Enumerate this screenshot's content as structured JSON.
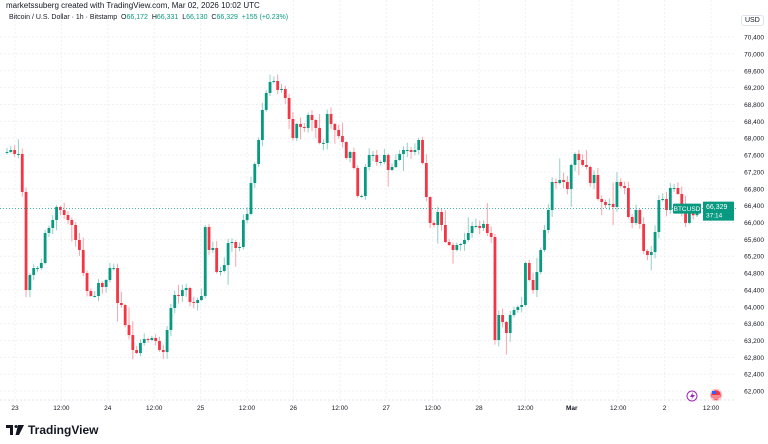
{
  "header": {
    "attribution": "marketssuberg created with TradingView.com, Mar 02, 2026 10:02 UTC"
  },
  "legend": {
    "symbol_desc": "Bitcoin / U.S. Dollar · 1h · Bitstamp",
    "o_label": "O",
    "o": "66,172",
    "h_label": "H",
    "h": "66,331",
    "l_label": "L",
    "l": "66,130",
    "c_label": "C",
    "c": "66,329",
    "change": "+155 (+0.23%)"
  },
  "currency": "USD",
  "price_tag": {
    "symbol": "BTCUSD",
    "price": "66,329",
    "countdown": "37:14"
  },
  "brand": {
    "name": "TradingView"
  },
  "colors": {
    "up": "#089981",
    "down": "#f23645",
    "grid": "#eef0f3",
    "text": "#131722",
    "event_lightning": "#9c27b0",
    "event_flag": "#f23645"
  },
  "events": [
    {
      "icon": "lightning-event-icon"
    },
    {
      "icon": "us-flag-event-icon"
    }
  ],
  "chart_data": {
    "type": "candlestick",
    "interval": "1h",
    "ylim": [
      61800,
      70600
    ],
    "grid": true,
    "y_ticks": [
      "70,400",
      "70,000",
      "69,600",
      "69,200",
      "68,800",
      "68,400",
      "68,000",
      "67,600",
      "67,200",
      "66,800",
      "66,400",
      "66,000",
      "65,600",
      "65,200",
      "64,800",
      "64,400",
      "64,000",
      "63,600",
      "63,200",
      "62,800",
      "62,400",
      "62,000"
    ],
    "x_ticks": [
      "23",
      "12:00",
      "24",
      "12:00",
      "25",
      "12:00",
      "26",
      "12:00",
      "27",
      "12:00",
      "28",
      "12:00",
      "Mar",
      "12:00",
      "2",
      "12:00"
    ],
    "first_open": 67650,
    "closes": [
      67673,
      67720,
      67626,
      67626,
      66724,
      64398,
      64754,
      64920,
      64920,
      65039,
      65751,
      65870,
      66059,
      66368,
      66297,
      66178,
      66059,
      65941,
      65585,
      65348,
      64802,
      64375,
      64256,
      64256,
      64565,
      64470,
      64636,
      64920,
      64920,
      64090,
      64042,
      63568,
      63330,
      62975,
      62903,
      63141,
      63236,
      63212,
      63260,
      63188,
      62975,
      62927,
      63449,
      63971,
      64280,
      64256,
      64398,
      64446,
      64114,
      64090,
      64161,
      64256,
      65893,
      65348,
      65395,
      64825,
      64849,
      64991,
      65514,
      65537,
      65395,
      65419,
      66059,
      66202,
      66936,
      67388,
      67958,
      68670,
      69073,
      69334,
      69358,
      69144,
      69168,
      68954,
      68456,
      68005,
      68338,
      68266,
      68243,
      68551,
      68432,
      68243,
      67887,
      67887,
      68575,
      68338,
      68195,
      68053,
      67910,
      67531,
      67673,
      67293,
      66629,
      66629,
      67317,
      67602,
      67602,
      67436,
      67436,
      67602,
      67246,
      67317,
      67483,
      67626,
      67720,
      67720,
      67673,
      67720,
      67958,
      67412,
      66605,
      65988,
      65941,
      66249,
      65941,
      65537,
      65466,
      65348,
      65466,
      65490,
      65585,
      65751,
      65917,
      65917,
      65870,
      65965,
      65751,
      65656,
      63212,
      63805,
      63639,
      63378,
      63805,
      63924,
      63995,
      64042,
      65039,
      64636,
      64398,
      64825,
      65348,
      65822,
      66297,
      66961,
      66936,
      67009,
      66961,
      66795,
      67365,
      67626,
      67483,
      67365,
      67317,
      66936,
      67127,
      66558,
      66487,
      66417,
      66440,
      66368,
      66961,
      66866,
      66819,
      66131,
      65988,
      66297,
      65965,
      65324,
      65229,
      65300,
      65775,
      66534,
      66558,
      66297,
      66819,
      66819,
      66677,
      66226,
      65988,
      66249,
      66172,
      66329
    ],
    "last_candle": {
      "open": 66172,
      "high": 66331,
      "low": 66130,
      "close": 66329
    }
  }
}
